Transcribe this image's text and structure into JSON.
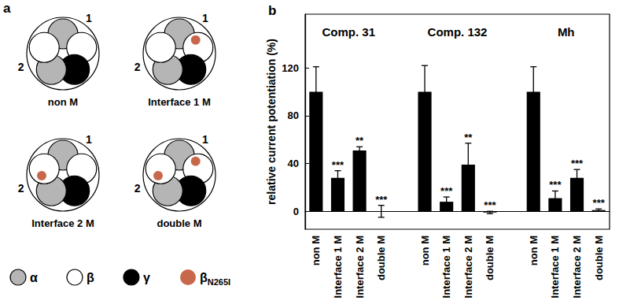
{
  "diagram": {
    "panel_label": "a",
    "ring": [
      "α",
      "β",
      "γ",
      "α",
      "β"
    ],
    "interface_labels": [
      "1",
      "2"
    ],
    "pentamers": [
      {
        "label": "non M",
        "mutations": []
      },
      {
        "label": "Interface 1 M",
        "mutations": [
          "1"
        ]
      },
      {
        "label": "Interface 2 M",
        "mutations": [
          "2"
        ]
      },
      {
        "label": "double M",
        "mutations": [
          "1",
          "2"
        ]
      }
    ],
    "legend": [
      {
        "label": "α",
        "color": "#b5b5b5"
      },
      {
        "label": "β",
        "color": "#ffffff"
      },
      {
        "label": "γ",
        "color": "#000000"
      },
      {
        "label": "β",
        "subscript": "N265I",
        "color": "#c8684a"
      }
    ]
  },
  "chart_data": {
    "type": "bar",
    "panel_label": "b",
    "y_label": "relative current potentiation (%)",
    "color": "#000000",
    "ylim": [
      -15,
      165
    ],
    "yticks": [
      0,
      40,
      80,
      120
    ],
    "groups": [
      {
        "title": "Comp. 31",
        "categories": [
          "non M",
          "Interface 1 M",
          "Interface 2 M",
          "double M"
        ],
        "values": [
          100,
          28,
          51,
          0
        ],
        "errors": [
          21,
          6,
          3,
          5
        ],
        "significance": [
          null,
          "***",
          "**",
          "***"
        ]
      },
      {
        "title": "Comp. 132",
        "categories": [
          "non M",
          "Interface 1 M",
          "Interface 2 M",
          "double M"
        ],
        "values": [
          100,
          8,
          39,
          -1
        ],
        "errors": [
          22,
          4,
          18,
          1
        ],
        "significance": [
          null,
          "***",
          "**",
          "***"
        ]
      },
      {
        "title": "Mh",
        "categories": [
          "non M",
          "Interface 1 M",
          "Interface 2 M",
          "double M"
        ],
        "values": [
          100,
          11,
          28,
          1
        ],
        "errors": [
          21,
          6,
          7,
          1
        ],
        "significance": [
          null,
          "***",
          "***",
          "***"
        ]
      }
    ]
  }
}
